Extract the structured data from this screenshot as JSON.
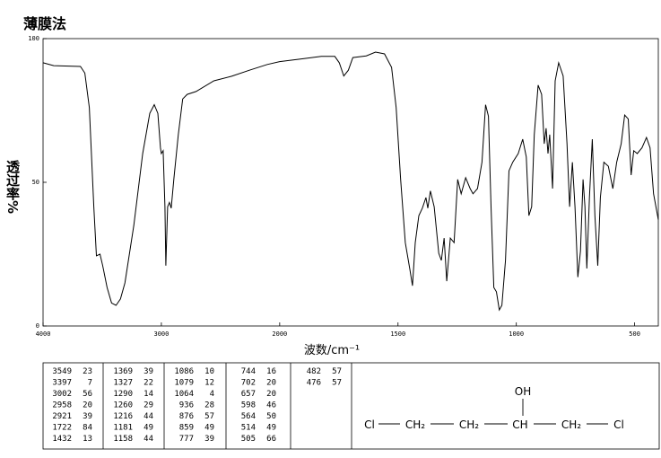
{
  "chart_data": {
    "type": "line",
    "title": "薄膜法",
    "y_label": "透过率%",
    "x_label": "波数/cm⁻¹",
    "color": "#000000",
    "xlim": [
      4000,
      400
    ],
    "xticks": [
      4000,
      3000,
      2000,
      1500,
      1000,
      500
    ],
    "ylim": [
      0,
      100
    ],
    "yticks": [
      0,
      50,
      100
    ],
    "x": [
      4000,
      3910,
      3684,
      3647,
      3609,
      3571,
      3549,
      3519,
      3496,
      3459,
      3421,
      3383,
      3346,
      3308,
      3233,
      3158,
      3098,
      3060,
      3030,
      3008,
      3000,
      2985,
      2970,
      2962,
      2947,
      2932,
      2917,
      2895,
      2857,
      2820,
      2782,
      2707,
      2556,
      2406,
      2256,
      2105,
      2000,
      1901,
      1824,
      1767,
      1748,
      1729,
      1710,
      1691,
      1634,
      1595,
      1557,
      1527,
      1508,
      1489,
      1469,
      1450,
      1439,
      1427,
      1412,
      1397,
      1382,
      1374,
      1363,
      1347,
      1328,
      1317,
      1305,
      1294,
      1279,
      1263,
      1248,
      1233,
      1214,
      1195,
      1183,
      1164,
      1145,
      1130,
      1118,
      1107,
      1095,
      1084,
      1072,
      1061,
      1046,
      1031,
      1015,
      992,
      973,
      958,
      947,
      935,
      924,
      908,
      893,
      882,
      874,
      866,
      859,
      847,
      836,
      821,
      802,
      786,
      775,
      763,
      752,
      740,
      729,
      718,
      710,
      702,
      691,
      679,
      668,
      656,
      645,
      630,
      611,
      592,
      576,
      557,
      542,
      527,
      515,
      504,
      489,
      469,
      450,
      435,
      420,
      400
    ],
    "values": [
      91.6,
      90.6,
      90.3,
      88,
      76,
      41.5,
      24.4,
      25,
      21,
      13.4,
      8,
      7.2,
      9.4,
      15,
      35,
      60,
      74,
      77,
      74,
      62,
      60,
      61,
      41.5,
      21,
      41.5,
      43,
      41,
      51,
      66.6,
      79,
      80.6,
      81.6,
      85.3,
      86.9,
      89,
      91,
      92,
      93,
      93.8,
      93.8,
      91.6,
      87,
      89,
      93.4,
      94,
      95.3,
      94.7,
      90,
      76,
      51,
      29,
      19.7,
      14,
      29,
      38.4,
      41,
      44.7,
      41,
      47,
      41.5,
      25.3,
      22.8,
      30.6,
      15.6,
      30.6,
      29,
      51,
      46,
      51.6,
      47.8,
      46,
      47.8,
      57,
      77,
      73,
      41.5,
      13.4,
      11.9,
      5.6,
      7.2,
      22.8,
      54,
      57,
      60,
      65,
      58.8,
      38.4,
      41.5,
      66.6,
      83.8,
      80.6,
      63.4,
      68.8,
      60,
      66.6,
      47.8,
      85.3,
      91.6,
      87,
      63.4,
      41.5,
      57,
      41.5,
      17,
      26,
      51,
      41.5,
      20,
      44.7,
      65,
      38.4,
      21,
      44.7,
      57,
      55.6,
      47.8,
      57,
      63.4,
      73.4,
      72,
      52.5,
      61,
      60,
      62,
      65.6,
      62,
      46,
      37
    ]
  },
  "peak_table": [
    [
      [
        3549,
        23
      ],
      [
        3397,
        7
      ],
      [
        3002,
        56
      ],
      [
        2958,
        20
      ],
      [
        2921,
        39
      ],
      [
        1722,
        84
      ],
      [
        1432,
        13
      ]
    ],
    [
      [
        1369,
        39
      ],
      [
        1327,
        22
      ],
      [
        1290,
        14
      ],
      [
        1260,
        29
      ],
      [
        1216,
        44
      ],
      [
        1181,
        49
      ],
      [
        1158,
        44
      ]
    ],
    [
      [
        1086,
        10
      ],
      [
        1079,
        12
      ],
      [
        1064,
        4
      ],
      [
        936,
        28
      ],
      [
        876,
        57
      ],
      [
        859,
        49
      ],
      [
        777,
        39
      ]
    ],
    [
      [
        744,
        16
      ],
      [
        702,
        20
      ],
      [
        657,
        20
      ],
      [
        598,
        46
      ],
      [
        564,
        50
      ],
      [
        514,
        49
      ],
      [
        505,
        66
      ]
    ],
    [
      [
        482,
        57
      ],
      [
        476,
        57
      ]
    ]
  ],
  "structure": {
    "substituent": "OH",
    "chain": [
      "Cl",
      "CH₂",
      "CH₂",
      "CH",
      "CH₂",
      "Cl"
    ]
  }
}
